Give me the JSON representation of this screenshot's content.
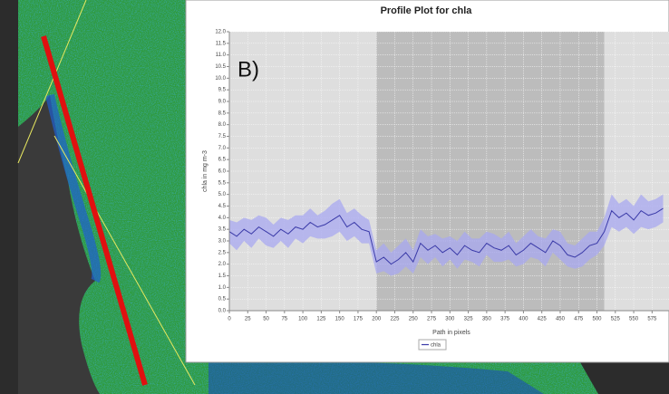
{
  "chart_data": {
    "type": "line",
    "title": "Profile Plot for chla",
    "panel_label": "B)",
    "x_label": "Path in pixels",
    "y_label": "chla in mg m-3",
    "x": [
      0,
      10,
      20,
      30,
      40,
      50,
      60,
      70,
      80,
      90,
      100,
      110,
      120,
      130,
      140,
      150,
      160,
      170,
      180,
      190,
      200,
      210,
      220,
      230,
      240,
      250,
      260,
      270,
      280,
      290,
      300,
      310,
      320,
      330,
      340,
      350,
      360,
      370,
      380,
      390,
      400,
      410,
      420,
      430,
      440,
      450,
      460,
      470,
      480,
      490,
      500,
      510,
      520,
      530,
      540,
      550,
      560,
      570,
      580,
      590
    ],
    "series": [
      {
        "name": "chla",
        "color": "#3a3aa8",
        "band_color": "#a8a8f0",
        "values": [
          3.4,
          3.2,
          3.5,
          3.3,
          3.6,
          3.4,
          3.2,
          3.5,
          3.3,
          3.6,
          3.5,
          3.8,
          3.6,
          3.7,
          3.9,
          4.1,
          3.6,
          3.8,
          3.5,
          3.4,
          2.1,
          2.3,
          2.0,
          2.2,
          2.5,
          2.1,
          2.9,
          2.6,
          2.8,
          2.5,
          2.7,
          2.4,
          2.8,
          2.6,
          2.5,
          2.9,
          2.7,
          2.6,
          2.8,
          2.4,
          2.6,
          2.9,
          2.7,
          2.5,
          3.0,
          2.8,
          2.4,
          2.3,
          2.5,
          2.8,
          2.9,
          3.4,
          4.3,
          4.0,
          4.2,
          3.9,
          4.3,
          4.1,
          4.2,
          4.4
        ],
        "std": [
          0.5,
          0.6,
          0.5,
          0.6,
          0.5,
          0.6,
          0.5,
          0.5,
          0.6,
          0.5,
          0.6,
          0.6,
          0.5,
          0.6,
          0.7,
          0.7,
          0.6,
          0.6,
          0.6,
          0.5,
          0.5,
          0.6,
          0.5,
          0.6,
          0.6,
          0.5,
          0.6,
          0.6,
          0.5,
          0.6,
          0.5,
          0.6,
          0.6,
          0.5,
          0.6,
          0.5,
          0.6,
          0.5,
          0.6,
          0.5,
          0.6,
          0.6,
          0.5,
          0.6,
          0.5,
          0.6,
          0.5,
          0.5,
          0.6,
          0.6,
          0.5,
          0.6,
          0.7,
          0.6,
          0.6,
          0.6,
          0.7,
          0.6,
          0.6,
          0.6
        ]
      }
    ],
    "regions": [
      {
        "start": 0,
        "end": 200,
        "color": "#dedede"
      },
      {
        "start": 200,
        "end": 510,
        "color": "#bcbcbc"
      },
      {
        "start": 510,
        "end": 598,
        "color": "#dedede"
      }
    ],
    "xlim": [
      0,
      598
    ],
    "ylim": [
      0,
      12
    ],
    "xticks": [
      0,
      25,
      50,
      75,
      100,
      125,
      150,
      175,
      200,
      225,
      250,
      275,
      300,
      325,
      350,
      375,
      400,
      425,
      450,
      475,
      500,
      525,
      550,
      575
    ],
    "yticks": [
      {
        "value": 0,
        "label": "0.0"
      },
      0.5,
      {
        "value": 1,
        "label": "1.0"
      },
      1.5,
      {
        "value": 2,
        "label": "2.0"
      },
      2.5,
      {
        "value": 3,
        "label": "3.0"
      },
      3.5,
      {
        "value": 4,
        "label": "4.0"
      },
      4.5,
      {
        "value": 5,
        "label": "5.0"
      },
      5.5,
      {
        "value": 6,
        "label": "6.0"
      },
      6.5,
      {
        "value": 7,
        "label": "7.0"
      },
      7.5,
      {
        "value": 8,
        "label": "8.0"
      },
      8.5,
      {
        "value": 9,
        "label": "9.0"
      },
      9.5,
      {
        "value": 10,
        "label": "10.0"
      },
      10.5,
      {
        "value": 11,
        "label": "11.0"
      },
      11.5,
      {
        "value": 12,
        "label": "12.0"
      }
    ],
    "grid": true
  }
}
